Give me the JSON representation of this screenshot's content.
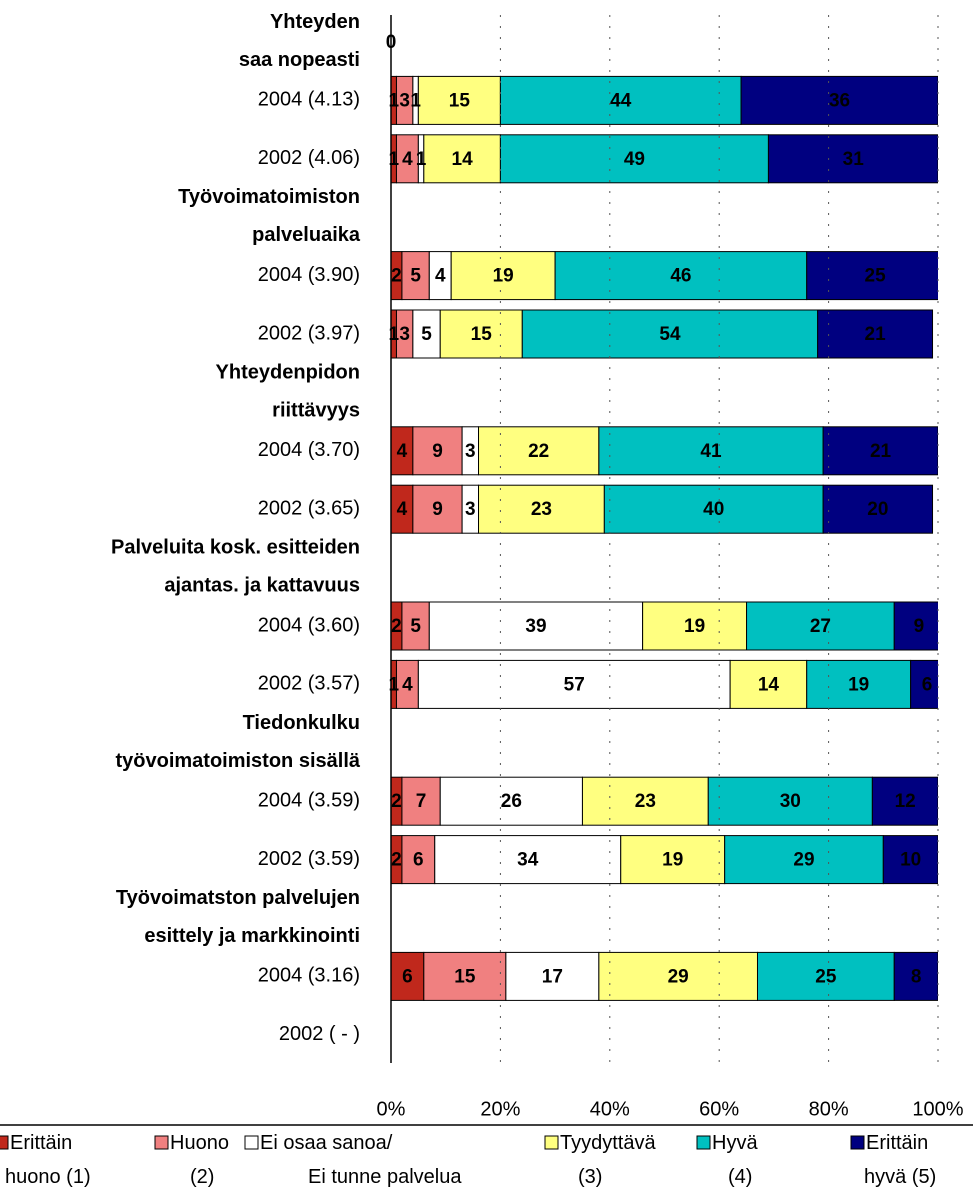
{
  "chart_data": {
    "type": "stacked_bar",
    "orientation": "horizontal",
    "categories": [
      "Yhteyden\nsaa nopeasti",
      "2004 (4.13)",
      "2002 (4.06)",
      "Työvoimatoimiston\npalveluaika",
      "2004 (3.90)",
      "2002 (3.97)",
      "Yhteydenpidon\nriittävyys",
      "2004 (3.70)",
      "2002 (3.65)",
      "Palveluita kosk. esitteiden\najantas. ja kattavuus",
      "2004 (3.60)",
      "2002 (3.57)",
      "Tiedonkulku\ntyövoimatoimiston sisällä",
      "2004 (3.59)",
      "2002 (3.59)",
      "Työvoimatston palvelujen\nesittely ja markkinointi",
      "2004 (3.16)",
      "2002 ( - )"
    ],
    "series": [
      {
        "name": "Erittäin\nhuono (1)",
        "color": "#c0281c",
        "label_color": "#ffffff",
        "values": [
          0,
          1,
          1,
          null,
          2,
          1,
          null,
          4,
          4,
          null,
          2,
          1,
          null,
          2,
          2,
          null,
          6,
          null
        ]
      },
      {
        "name": "Huono\n(2)",
        "color": "#f08080",
        "label_color": "#000000",
        "values": [
          null,
          3,
          4,
          null,
          5,
          3,
          null,
          9,
          9,
          null,
          5,
          4,
          null,
          7,
          6,
          null,
          15,
          null
        ]
      },
      {
        "name": "Ei osaa sanoa/\nEi tunne palvelua",
        "color": "#ffffff",
        "label_color": "#000000",
        "values": [
          null,
          1,
          1,
          null,
          4,
          5,
          null,
          3,
          3,
          null,
          39,
          57,
          null,
          26,
          34,
          null,
          17,
          null
        ]
      },
      {
        "name": "Tyydyttävä\n(3)",
        "color": "#ffff80",
        "label_color": "#000000",
        "values": [
          null,
          15,
          14,
          null,
          19,
          15,
          null,
          22,
          23,
          null,
          19,
          14,
          null,
          23,
          19,
          null,
          29,
          null
        ]
      },
      {
        "name": "Hyvä\n(4)",
        "color": "#00c0c0",
        "label_color": "#000000",
        "values": [
          null,
          44,
          49,
          null,
          46,
          54,
          null,
          41,
          40,
          null,
          27,
          19,
          null,
          30,
          29,
          null,
          25,
          null
        ]
      },
      {
        "name": "Erittäin\nhyvä (5)",
        "color": "#000080",
        "label_color": "#ffffff",
        "values": [
          null,
          36,
          31,
          null,
          25,
          21,
          null,
          21,
          20,
          null,
          9,
          6,
          null,
          12,
          10,
          null,
          8,
          null
        ]
      }
    ],
    "xlim": [
      0,
      100
    ],
    "xticks": [
      {
        "value": 0,
        "label": "0%"
      },
      {
        "value": 20,
        "label": "20%"
      },
      {
        "value": 40,
        "label": "40%"
      },
      {
        "value": 60,
        "label": "60%"
      },
      {
        "value": 80,
        "label": "80%"
      },
      {
        "value": 100,
        "label": "100%"
      }
    ],
    "grid": true
  }
}
